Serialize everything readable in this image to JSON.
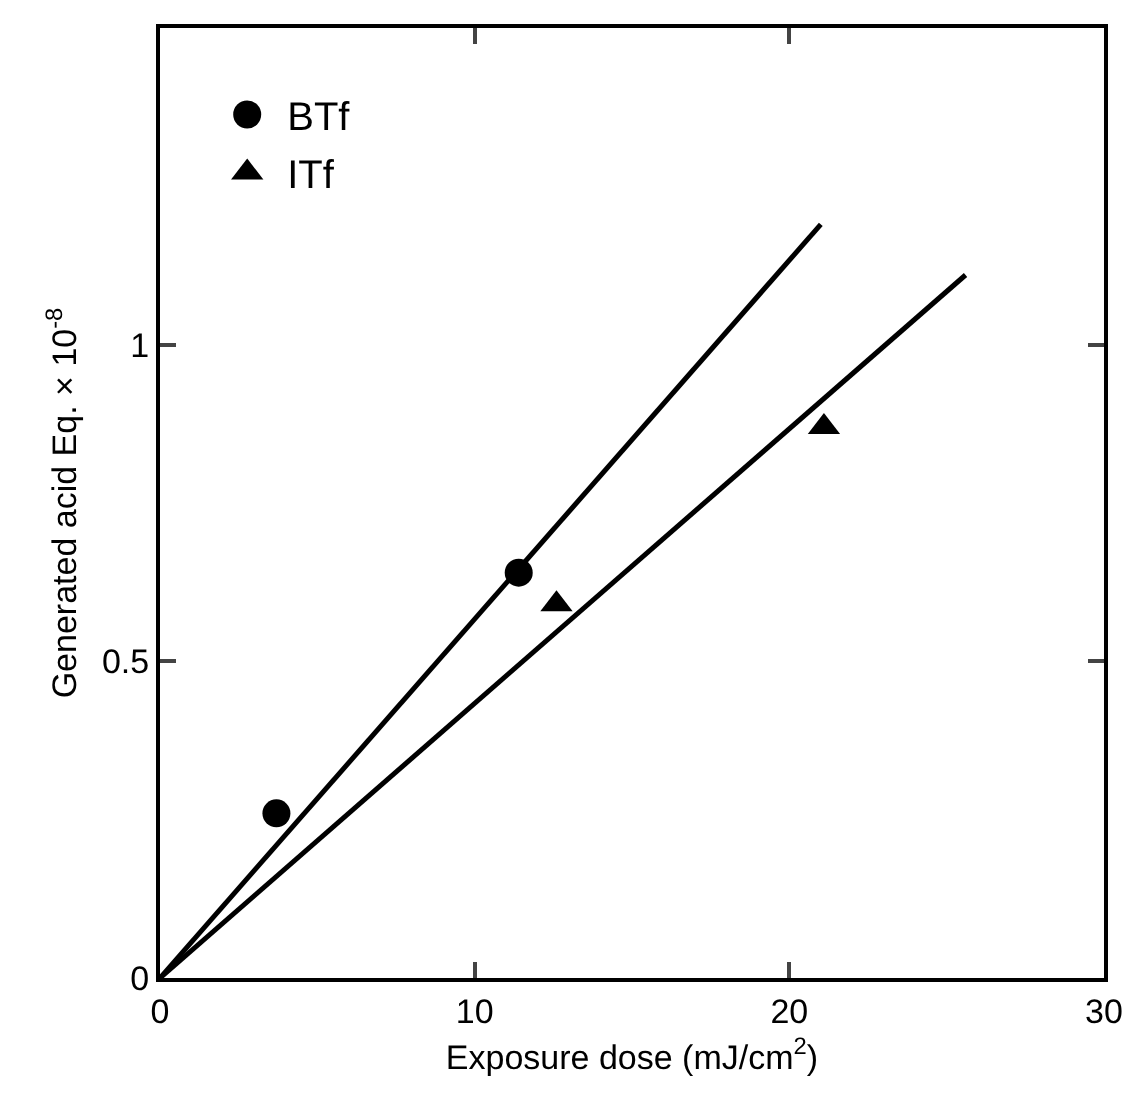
{
  "chart_data": {
    "type": "scatter",
    "xlabel": "Exposure dose (mJ/cm$^{2}$)",
    "ylabel": "Generated acid Eq. × 10$^{-8}$",
    "xlim": [
      0,
      30
    ],
    "xticks": [
      0,
      10,
      20,
      30
    ],
    "ylim": [
      0,
      1.5
    ],
    "yticks": [
      0,
      0.5,
      1
    ],
    "grid": false,
    "legend": "top left",
    "series": [
      {
        "name": "BTf",
        "color": "#000000",
        "marker": "circle",
        "x": [
          3.7,
          11.4
        ],
        "values": [
          0.26,
          0.64
        ]
      },
      {
        "name": "ITf",
        "color": "#000000",
        "marker": "triangle",
        "x": [
          12.6,
          21.1
        ],
        "values": [
          0.59,
          0.87
        ]
      },
      {
        "type": "line",
        "color": "#000000",
        "marker": "none",
        "line_style": "solid",
        "x": [
          0,
          21
        ],
        "values": [
          0,
          1.19
        ]
      },
      {
        "type": "line",
        "color": "#000000",
        "marker": "none",
        "line_style": "solid",
        "x": [
          0,
          25.6
        ],
        "values": [
          0,
          1.11
        ]
      }
    ]
  }
}
